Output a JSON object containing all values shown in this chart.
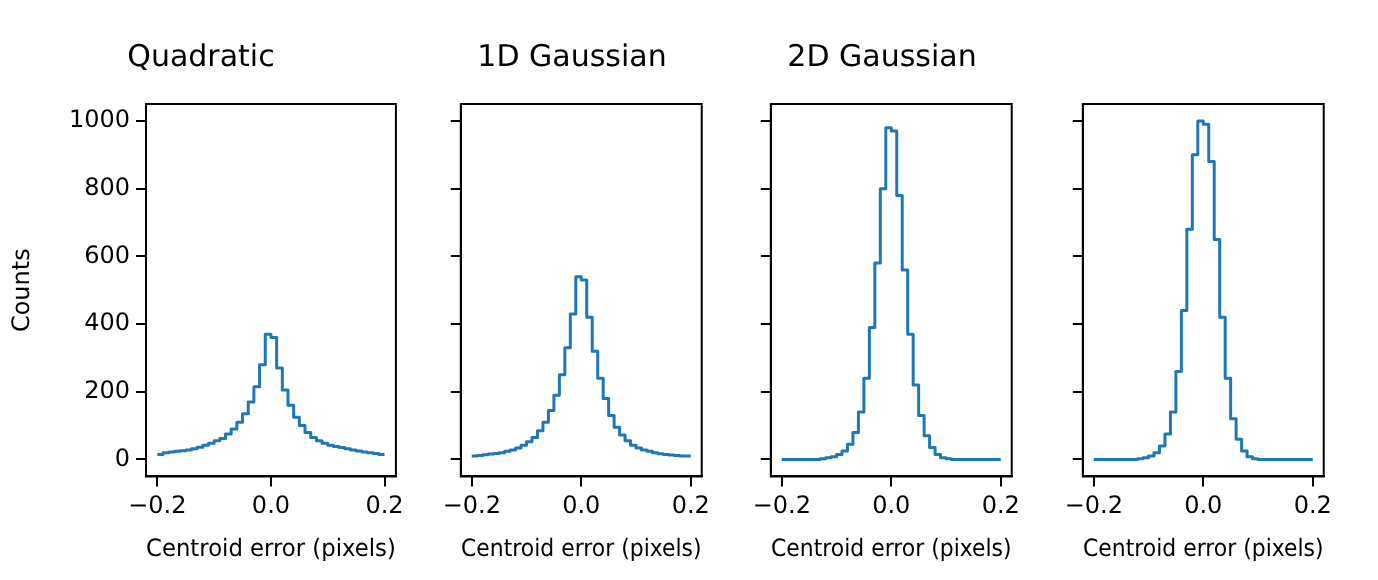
{
  "chart_data": [
    {
      "type": "histogram",
      "title": "Quadratic",
      "xlabel": "Centroid error (pixels)",
      "ylabel": "Counts",
      "color": "#1f77b4",
      "xlim": [
        -0.22,
        0.22
      ],
      "ylim": [
        -50,
        1050
      ],
      "xticks": [
        {
          "value": -0.2,
          "label": "−0.2"
        },
        {
          "value": 0,
          "label": "0.0"
        },
        {
          "value": 0.2,
          "label": "0.2"
        }
      ],
      "yticks": [
        0,
        200,
        400,
        600,
        800,
        1000
      ],
      "bins": [
        -0.2,
        -0.19,
        -0.18,
        -0.17,
        -0.16,
        -0.15,
        -0.14,
        -0.13,
        -0.12,
        -0.11,
        -0.1,
        -0.09,
        -0.08,
        -0.07,
        -0.06,
        -0.05,
        -0.04,
        -0.03,
        -0.02,
        -0.01,
        0,
        0.01,
        0.02,
        0.03,
        0.04,
        0.05,
        0.06,
        0.07,
        0.08,
        0.09,
        0.1,
        0.11,
        0.12,
        0.13,
        0.14,
        0.15,
        0.16,
        0.17,
        0.18,
        0.19,
        0.2
      ],
      "values": [
        15,
        20,
        22,
        24,
        26,
        28,
        32,
        36,
        42,
        48,
        55,
        62,
        75,
        90,
        110,
        135,
        170,
        215,
        280,
        370,
        360,
        270,
        205,
        160,
        125,
        100,
        80,
        65,
        55,
        48,
        42,
        38,
        35,
        32,
        28,
        25,
        22,
        20,
        18,
        15
      ]
    },
    {
      "type": "histogram",
      "title": "1D Gaussian",
      "xlabel": "Centroid error (pixels)",
      "color": "#1f77b4",
      "xlim": [
        -0.22,
        0.22
      ],
      "ylim": [
        -50,
        1050
      ],
      "xticks": [
        {
          "value": -0.2,
          "label": "−0.2"
        },
        {
          "value": 0,
          "label": "0.0"
        },
        {
          "value": 0.2,
          "label": "0.2"
        }
      ],
      "yticks": [
        0,
        200,
        400,
        600,
        800,
        1000
      ],
      "tick_labels": "x",
      "bins": [
        -0.2,
        -0.19,
        -0.18,
        -0.17,
        -0.16,
        -0.15,
        -0.14,
        -0.13,
        -0.12,
        -0.11,
        -0.1,
        -0.09,
        -0.08,
        -0.07,
        -0.06,
        -0.05,
        -0.04,
        -0.03,
        -0.02,
        -0.01,
        0,
        0.01,
        0.02,
        0.03,
        0.04,
        0.05,
        0.06,
        0.07,
        0.08,
        0.09,
        0.1,
        0.11,
        0.12,
        0.13,
        0.14,
        0.15,
        0.16,
        0.17,
        0.18,
        0.19,
        0.2
      ],
      "values": [
        10,
        12,
        14,
        16,
        18,
        20,
        24,
        28,
        34,
        42,
        52,
        65,
        85,
        110,
        145,
        190,
        250,
        330,
        430,
        540,
        530,
        420,
        320,
        240,
        180,
        130,
        95,
        72,
        55,
        42,
        34,
        28,
        24,
        20,
        17,
        15,
        13,
        12,
        10,
        10
      ]
    },
    {
      "type": "histogram",
      "title": "2D Gaussian",
      "xlabel": "Centroid error (pixels)",
      "color": "#1f77b4",
      "xlim": [
        -0.22,
        0.22
      ],
      "ylim": [
        -50,
        1050
      ],
      "xticks": [
        {
          "value": -0.2,
          "label": "−0.2"
        },
        {
          "value": 0,
          "label": "0.0"
        },
        {
          "value": 0.2,
          "label": "0.2"
        }
      ],
      "yticks": [
        0,
        200,
        400,
        600,
        800,
        1000
      ],
      "tick_labels": "x",
      "bins": [
        -0.2,
        -0.19,
        -0.18,
        -0.17,
        -0.16,
        -0.15,
        -0.14,
        -0.13,
        -0.12,
        -0.11,
        -0.1,
        -0.09,
        -0.08,
        -0.07,
        -0.06,
        -0.05,
        -0.04,
        -0.03,
        -0.02,
        -0.01,
        0,
        0.01,
        0.02,
        0.03,
        0.04,
        0.05,
        0.06,
        0.07,
        0.08,
        0.09,
        0.1,
        0.11,
        0.12,
        0.13,
        0.14,
        0.15,
        0.16,
        0.17,
        0.18,
        0.19,
        0.2
      ],
      "values": [
        0,
        0,
        0,
        0,
        0,
        0,
        0,
        2,
        5,
        8,
        15,
        25,
        45,
        80,
        140,
        240,
        390,
        580,
        800,
        980,
        970,
        780,
        560,
        370,
        220,
        130,
        70,
        35,
        15,
        5,
        2,
        0,
        0,
        0,
        0,
        0,
        0,
        0,
        0,
        0
      ]
    },
    {
      "type": "histogram",
      "xlabel": "Centroid error (pixels)",
      "color": "#1f77b4",
      "xlim": [
        -0.22,
        0.22
      ],
      "ylim": [
        -50,
        1050
      ],
      "xticks": [
        {
          "value": -0.2,
          "label": "−0.2"
        },
        {
          "value": 0,
          "label": "0.0"
        },
        {
          "value": 0.2,
          "label": "0.2"
        }
      ],
      "yticks": [
        0,
        200,
        400,
        600,
        800,
        1000
      ],
      "tick_labels": "x",
      "bins": [
        -0.2,
        -0.19,
        -0.18,
        -0.17,
        -0.16,
        -0.15,
        -0.14,
        -0.13,
        -0.12,
        -0.11,
        -0.1,
        -0.09,
        -0.08,
        -0.07,
        -0.06,
        -0.05,
        -0.04,
        -0.03,
        -0.02,
        -0.01,
        0,
        0.01,
        0.02,
        0.03,
        0.04,
        0.05,
        0.06,
        0.07,
        0.08,
        0.09,
        0.1,
        0.11,
        0.12,
        0.13,
        0.14,
        0.15,
        0.16,
        0.17,
        0.18,
        0.19,
        0.2
      ],
      "values": [
        0,
        0,
        0,
        0,
        0,
        0,
        0,
        0,
        2,
        5,
        10,
        20,
        40,
        75,
        140,
        260,
        440,
        680,
        900,
        1000,
        990,
        880,
        650,
        420,
        240,
        120,
        60,
        25,
        8,
        2,
        0,
        0,
        0,
        0,
        0,
        0,
        0,
        0,
        0,
        0
      ]
    }
  ]
}
